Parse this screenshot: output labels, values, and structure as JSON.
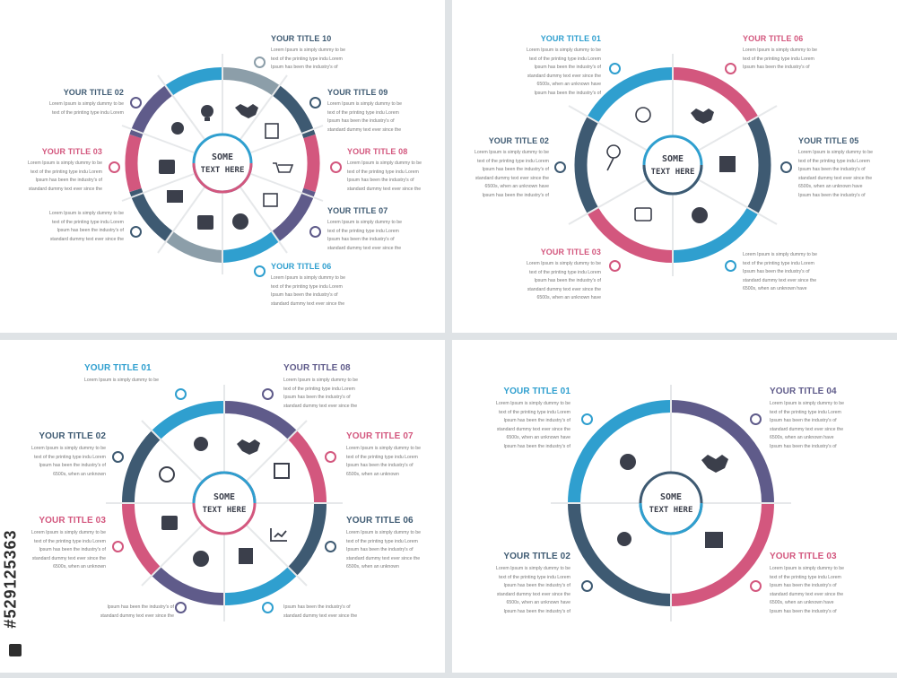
{
  "colors": {
    "blue": "#2f9fcf",
    "purple": "#5f5b8a",
    "pink": "#d3577e",
    "navy": "#3e5a72",
    "gray": "#8c9ea9",
    "text": "#777777"
  },
  "panel1": {
    "center_text": [
      "SOME",
      "TEXT HERE"
    ],
    "items": [
      {
        "title": "YOUR TITLE 10",
        "color": "#3e5a72",
        "desc": [
          "Lorem Ipsum is simply dummy to be",
          "text of the printing type indu Lorem",
          "Ipsum has been the industry's of"
        ]
      },
      {
        "title": "YOUR TITLE 09",
        "color": "#3e5a72",
        "desc": [
          "Lorem Ipsum is simply dummy to be",
          "text of the printing type indu Lorem",
          "Ipsum has been the industry's of",
          "standard dummy text ever since the"
        ]
      },
      {
        "title": "YOUR TITLE 08",
        "color": "#d3577e",
        "desc": [
          "Lorem Ipsum is simply dummy to be",
          "text of the printing type indu Lorem",
          "Ipsum has been the industry's of",
          "standard dummy text ever since the"
        ]
      },
      {
        "title": "YOUR TITLE 07",
        "color": "#3e5a72",
        "desc": [
          "Lorem Ipsum is simply dummy to be",
          "text of the printing type indu Lorem",
          "Ipsum has been the industry's of",
          "standard dummy text ever since the"
        ]
      },
      {
        "title": "YOUR TITLE 06",
        "color": "#2f9fcf",
        "desc": [
          "Lorem Ipsum is simply dummy to be",
          "text of the printing type indu Lorem",
          "Ipsum has been the industry's of",
          "standard dummy text ever since the"
        ]
      },
      {
        "title": "YOUR TITLE 02",
        "color": "#3e5a72",
        "desc": [
          "Lorem Ipsum is simply dummy to be",
          "text of the printing type indu Lorem"
        ]
      },
      {
        "title": "YOUR TITLE 03",
        "color": "#d3577e",
        "desc": [
          "Lorem Ipsum is simply dummy to be",
          "text of the printing type indu Lorem",
          "Ipsum has been the industry's of",
          "standard dummy text ever since the"
        ]
      },
      {
        "title": "",
        "color": "#3e5a72",
        "desc": [
          "Lorem Ipsum is simply dummy to be",
          "text of the printing type indu Lorem",
          "Ipsum has been the industry's of",
          "standard dummy text ever since the"
        ]
      }
    ]
  },
  "panel2": {
    "center_text": [
      "SOME",
      "TEXT HERE"
    ],
    "items": [
      {
        "title": "YOUR TITLE 01",
        "color": "#2f9fcf",
        "desc": [
          "Lorem Ipsum is simply dummy to be",
          "text of the printing type indu Lorem",
          "Ipsum has been the industry's of",
          "standard dummy text ever since the",
          "6500s, when an unknown have",
          "Ipsum has been the industry's of"
        ]
      },
      {
        "title": "YOUR TITLE 06",
        "color": "#d3577e",
        "desc": [
          "Lorem Ipsum is simply dummy to be",
          "text of the printing type indu Lorem",
          "Ipsum has been the industry's of"
        ]
      },
      {
        "title": "YOUR TITLE 02",
        "color": "#3e5a72",
        "desc": [
          "Lorem Ipsum is simply dummy to be",
          "text of the printing type indu Lorem",
          "Ipsum has been the industry's of",
          "standard dummy text ever since the",
          "6500s, when an unknown have",
          "Ipsum has been the industry's of"
        ]
      },
      {
        "title": "YOUR TITLE 05",
        "color": "#3e5a72",
        "desc": [
          "Lorem Ipsum is simply dummy to be",
          "text of the printing type indu Lorem",
          "Ipsum has been the industry's of",
          "standard dummy text ever since the",
          "6500s, when an unknown have",
          "Ipsum has been the industry's of"
        ]
      },
      {
        "title": "YOUR TITLE 03",
        "color": "#d3577e",
        "desc": [
          "Lorem Ipsum is simply dummy to be",
          "text of the printing type indu Lorem",
          "Ipsum has been the industry's of",
          "standard dummy text ever since the",
          "6500s, when an unknown have",
          "Ipsum has been the industry's of"
        ]
      },
      {
        "title": "",
        "color": "#2f9fcf",
        "desc": [
          "Lorem Ipsum is simply dummy to be",
          "text of the printing type indu Lorem",
          "Ipsum has been the industry's of",
          "standard dummy text ever since the",
          "6500s, when an unknown have",
          "Ipsum has been the industry's of"
        ]
      }
    ]
  },
  "panel3": {
    "center_text": [
      "SOME",
      "TEXT HERE"
    ],
    "items": [
      {
        "title": "YOUR TITLE 01",
        "color": "#2f9fcf",
        "desc": [
          "Lorem Ipsum is simply dummy to be"
        ]
      },
      {
        "title": "YOUR TITLE 08",
        "color": "#5f5b8a",
        "desc": [
          "Lorem Ipsum is simply dummy to be",
          "text of the printing type indu Lorem",
          "Ipsum has been the industry's of",
          "standard dummy text ever since the"
        ]
      },
      {
        "title": "YOUR TITLE 02",
        "color": "#3e5a72",
        "desc": [
          "Lorem Ipsum is simply dummy to be",
          "text of the printing type indu Lorem",
          "Ipsum has been the industry's of",
          "6500s, when an unknown"
        ]
      },
      {
        "title": "YOUR TITLE 07",
        "color": "#d3577e",
        "desc": [
          "Lorem Ipsum is simply dummy to be",
          "text of the printing type indu Lorem",
          "Ipsum has been the industry's of",
          "6500s, when an unknown"
        ]
      },
      {
        "title": "YOUR TITLE 03",
        "color": "#d3577e",
        "desc": [
          "Lorem Ipsum is simply dummy to be",
          "text of the printing type indu Lorem",
          "Ipsum has been the industry's of",
          "standard dummy text ever since the",
          "6500s, when an unknown"
        ]
      },
      {
        "title": "YOUR TITLE 06",
        "color": "#3e5a72",
        "desc": [
          "Lorem Ipsum is simply dummy to be",
          "text of the printing type indu Lorem",
          "Ipsum has been the industry's of",
          "standard dummy text ever since the",
          "6500s, when an unknown"
        ]
      },
      {
        "title": "",
        "color": "#5f5b8a",
        "desc": [
          "Ipsum has been the industry's of",
          "standard dummy text ever since the"
        ]
      },
      {
        "title": "",
        "color": "#2f9fcf",
        "desc": [
          "Ipsum has been the industry's of",
          "standard dummy text ever since the"
        ]
      }
    ]
  },
  "panel4": {
    "center_text": [
      "SOME",
      "TEXT HERE"
    ],
    "items": [
      {
        "title": "YOUR TITLE 01",
        "color": "#2f9fcf",
        "desc": [
          "Lorem Ipsum is simply dummy to be",
          "text of the printing type indu Lorem",
          "Ipsum has been the industry's of",
          "standard dummy text ever since the",
          "6500s, when an unknown have",
          "Ipsum has been the industry's of"
        ]
      },
      {
        "title": "YOUR TITLE 04",
        "color": "#5f5b8a",
        "desc": [
          "Lorem Ipsum is simply dummy to be",
          "text of the printing type indu Lorem",
          "Ipsum has been the industry's of",
          "standard dummy text ever since the",
          "6500s, when an unknown have",
          "Ipsum has been the industry's of"
        ]
      },
      {
        "title": "YOUR TITLE 02",
        "color": "#3e5a72",
        "desc": [
          "Lorem Ipsum is simply dummy to be",
          "text of the printing type indu Lorem",
          "Ipsum has been the industry's of",
          "standard dummy text ever since the",
          "6500s, when an unknown have",
          "Ipsum has been the industry's of"
        ]
      },
      {
        "title": "YOUR TITLE 03",
        "color": "#d3577e",
        "desc": [
          "Lorem Ipsum is simply dummy to be",
          "text of the printing type indu Lorem",
          "Ipsum has been the industry's of",
          "standard dummy text ever since the",
          "6500s, when an unknown have",
          "Ipsum has been the industry's of"
        ]
      }
    ]
  },
  "watermark": {
    "id": "#529125363"
  }
}
